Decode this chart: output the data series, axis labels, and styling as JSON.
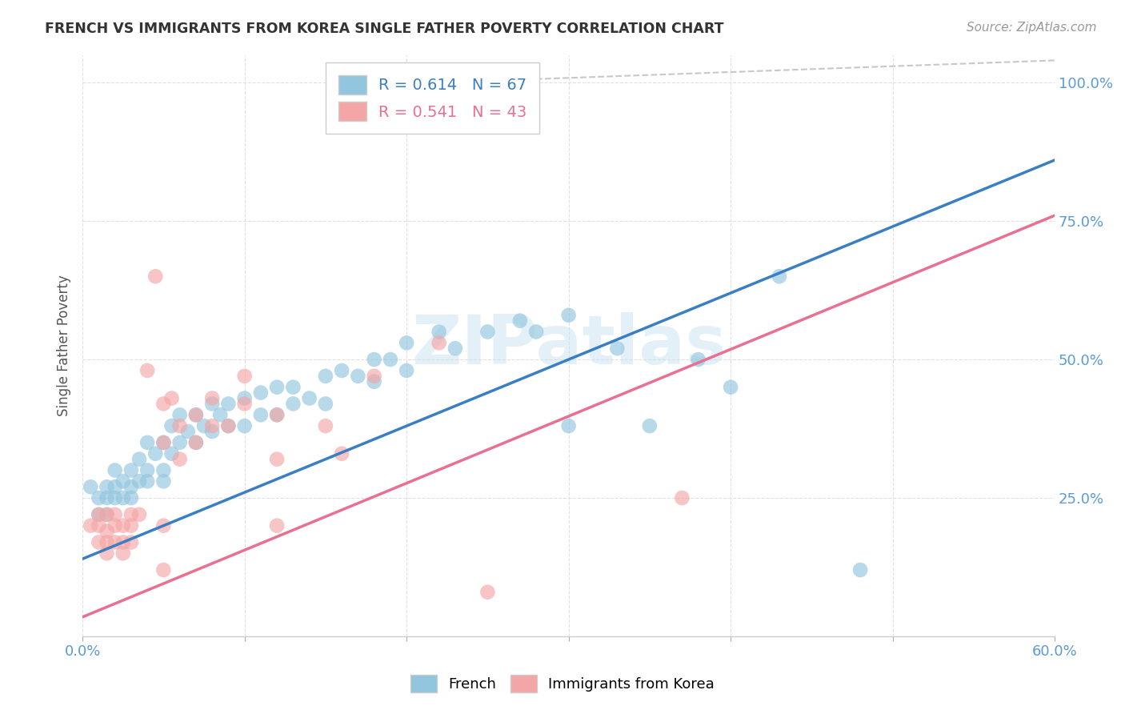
{
  "title": "FRENCH VS IMMIGRANTS FROM KOREA SINGLE FATHER POVERTY CORRELATION CHART",
  "source": "Source: ZipAtlas.com",
  "ylabel": "Single Father Poverty",
  "xlim": [
    0.0,
    0.6
  ],
  "ylim": [
    0.0,
    1.05
  ],
  "xticks": [
    0.0,
    0.1,
    0.2,
    0.3,
    0.4,
    0.5,
    0.6
  ],
  "xticklabels": [
    "0.0%",
    "",
    "",
    "",
    "",
    "",
    "60.0%"
  ],
  "yticks": [
    0.25,
    0.5,
    0.75,
    1.0
  ],
  "yticklabels": [
    "25.0%",
    "50.0%",
    "75.0%",
    "100.0%"
  ],
  "french_R": 0.614,
  "french_N": 67,
  "korea_R": 0.541,
  "korea_N": 43,
  "french_color": "#92c5de",
  "korea_color": "#f4a6a6",
  "french_line_color": "#3a7fc1",
  "korea_line_color": "#e87090",
  "diagonal_color": "#c8c8c8",
  "watermark": "ZIPatlas",
  "french_line": [
    [
      0.0,
      0.14
    ],
    [
      0.6,
      0.86
    ]
  ],
  "korea_line": [
    [
      0.0,
      0.035
    ],
    [
      0.6,
      0.76
    ]
  ],
  "diagonal_line": [
    [
      0.22,
      1.0
    ],
    [
      0.6,
      1.04
    ]
  ],
  "french_scatter": [
    [
      0.005,
      0.27
    ],
    [
      0.01,
      0.25
    ],
    [
      0.01,
      0.22
    ],
    [
      0.015,
      0.27
    ],
    [
      0.015,
      0.25
    ],
    [
      0.015,
      0.22
    ],
    [
      0.02,
      0.3
    ],
    [
      0.02,
      0.27
    ],
    [
      0.02,
      0.25
    ],
    [
      0.025,
      0.28
    ],
    [
      0.025,
      0.25
    ],
    [
      0.03,
      0.3
    ],
    [
      0.03,
      0.27
    ],
    [
      0.03,
      0.25
    ],
    [
      0.035,
      0.32
    ],
    [
      0.035,
      0.28
    ],
    [
      0.04,
      0.35
    ],
    [
      0.04,
      0.3
    ],
    [
      0.04,
      0.28
    ],
    [
      0.045,
      0.33
    ],
    [
      0.05,
      0.35
    ],
    [
      0.05,
      0.3
    ],
    [
      0.05,
      0.28
    ],
    [
      0.055,
      0.38
    ],
    [
      0.055,
      0.33
    ],
    [
      0.06,
      0.4
    ],
    [
      0.06,
      0.35
    ],
    [
      0.065,
      0.37
    ],
    [
      0.07,
      0.4
    ],
    [
      0.07,
      0.35
    ],
    [
      0.075,
      0.38
    ],
    [
      0.08,
      0.42
    ],
    [
      0.08,
      0.37
    ],
    [
      0.085,
      0.4
    ],
    [
      0.09,
      0.42
    ],
    [
      0.09,
      0.38
    ],
    [
      0.1,
      0.43
    ],
    [
      0.1,
      0.38
    ],
    [
      0.11,
      0.44
    ],
    [
      0.11,
      0.4
    ],
    [
      0.12,
      0.45
    ],
    [
      0.12,
      0.4
    ],
    [
      0.13,
      0.45
    ],
    [
      0.13,
      0.42
    ],
    [
      0.14,
      0.43
    ],
    [
      0.15,
      0.47
    ],
    [
      0.15,
      0.42
    ],
    [
      0.16,
      0.48
    ],
    [
      0.17,
      0.47
    ],
    [
      0.18,
      0.5
    ],
    [
      0.18,
      0.46
    ],
    [
      0.19,
      0.5
    ],
    [
      0.2,
      0.53
    ],
    [
      0.2,
      0.48
    ],
    [
      0.22,
      0.55
    ],
    [
      0.23,
      0.52
    ],
    [
      0.25,
      0.55
    ],
    [
      0.27,
      0.57
    ],
    [
      0.28,
      0.55
    ],
    [
      0.3,
      0.58
    ],
    [
      0.3,
      0.38
    ],
    [
      0.33,
      0.52
    ],
    [
      0.35,
      0.38
    ],
    [
      0.38,
      0.5
    ],
    [
      0.4,
      0.45
    ],
    [
      0.43,
      0.65
    ],
    [
      0.48,
      0.12
    ]
  ],
  "korea_scatter": [
    [
      0.005,
      0.2
    ],
    [
      0.01,
      0.22
    ],
    [
      0.01,
      0.2
    ],
    [
      0.01,
      0.17
    ],
    [
      0.015,
      0.22
    ],
    [
      0.015,
      0.19
    ],
    [
      0.015,
      0.17
    ],
    [
      0.015,
      0.15
    ],
    [
      0.02,
      0.22
    ],
    [
      0.02,
      0.2
    ],
    [
      0.02,
      0.17
    ],
    [
      0.025,
      0.2
    ],
    [
      0.025,
      0.17
    ],
    [
      0.025,
      0.15
    ],
    [
      0.03,
      0.22
    ],
    [
      0.03,
      0.2
    ],
    [
      0.03,
      0.17
    ],
    [
      0.035,
      0.22
    ],
    [
      0.04,
      0.48
    ],
    [
      0.045,
      0.65
    ],
    [
      0.05,
      0.42
    ],
    [
      0.05,
      0.35
    ],
    [
      0.05,
      0.2
    ],
    [
      0.05,
      0.12
    ],
    [
      0.055,
      0.43
    ],
    [
      0.06,
      0.38
    ],
    [
      0.06,
      0.32
    ],
    [
      0.07,
      0.4
    ],
    [
      0.07,
      0.35
    ],
    [
      0.08,
      0.43
    ],
    [
      0.08,
      0.38
    ],
    [
      0.09,
      0.38
    ],
    [
      0.1,
      0.47
    ],
    [
      0.1,
      0.42
    ],
    [
      0.12,
      0.4
    ],
    [
      0.12,
      0.32
    ],
    [
      0.12,
      0.2
    ],
    [
      0.15,
      0.38
    ],
    [
      0.16,
      0.33
    ],
    [
      0.18,
      0.47
    ],
    [
      0.22,
      0.53
    ],
    [
      0.25,
      0.08
    ],
    [
      0.37,
      0.25
    ]
  ]
}
